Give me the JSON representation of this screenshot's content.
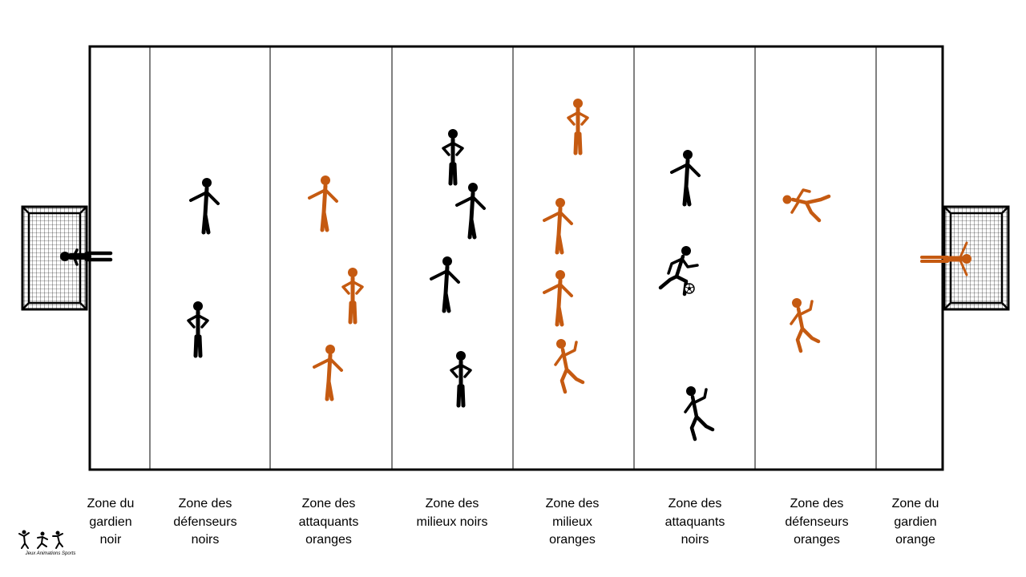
{
  "colors": {
    "black_team": "#000000",
    "orange_team": "#c55a11",
    "lines": "#000000",
    "background": "#ffffff"
  },
  "zones": [
    {
      "label": "Zone du\ngardien\nnoir"
    },
    {
      "label": "Zone des\ndéfenseurs\nnoirs"
    },
    {
      "label": "Zone des\nattaquants\noranges"
    },
    {
      "label": "Zone des\nmilieux noirs"
    },
    {
      "label": "Zone des\nmilieux\noranges"
    },
    {
      "label": "Zone des\nattaquants\nnoirs"
    },
    {
      "label": "Zone des\ndéfenseurs\noranges"
    },
    {
      "label": "Zone du\ngardien\norange"
    }
  ],
  "players": {
    "black": [
      "goalkeeper-diving",
      "defender-standing",
      "defender-standing",
      "midfielder-standing",
      "midfielder-standing",
      "midfielder-standing",
      "midfielder-standing",
      "attacker-standing",
      "attacker-dribbling-ball",
      "attacker-kicking"
    ],
    "orange": [
      "goalkeeper-diving",
      "attacker-standing",
      "attacker-standing",
      "attacker-standing",
      "midfielder-standing",
      "midfielder-standing",
      "midfielder-standing",
      "midfielder-kicking",
      "defender-sliding",
      "defender-kicking"
    ]
  },
  "logo": {
    "caption": "Jeux Animations Sports",
    "icon": "three-athletes-icon"
  }
}
